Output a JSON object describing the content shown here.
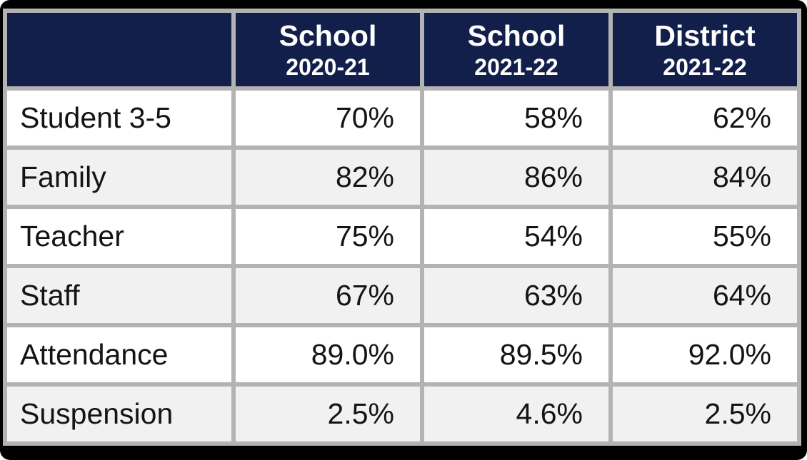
{
  "chart_data": {
    "type": "table",
    "header": {
      "corner": "",
      "columns": [
        {
          "title": "School",
          "subtitle": "2020-21"
        },
        {
          "title": "School",
          "subtitle": "2021-22"
        },
        {
          "title": "District",
          "subtitle": "2021-22"
        }
      ]
    },
    "rows": [
      {
        "label": "Student 3-5",
        "values": [
          "70%",
          "58%",
          "62%"
        ]
      },
      {
        "label": "Family",
        "values": [
          "82%",
          "86%",
          "84%"
        ]
      },
      {
        "label": "Teacher",
        "values": [
          "75%",
          "54%",
          "55%"
        ]
      },
      {
        "label": "Staff",
        "values": [
          "67%",
          "63%",
          "64%"
        ]
      },
      {
        "label": "Attendance",
        "values": [
          "89.0%",
          "89.5%",
          "92.0%"
        ]
      },
      {
        "label": "Suspension",
        "values": [
          "2.5%",
          "4.6%",
          "2.5%"
        ]
      }
    ]
  },
  "colors": {
    "frame": "#000000",
    "grid": "#b3b3b3",
    "header_bg": "#121f4b",
    "header_text": "#ffffff",
    "row": "#ffffff",
    "row_alt": "#f1f1f1",
    "body_text": "#141414"
  }
}
